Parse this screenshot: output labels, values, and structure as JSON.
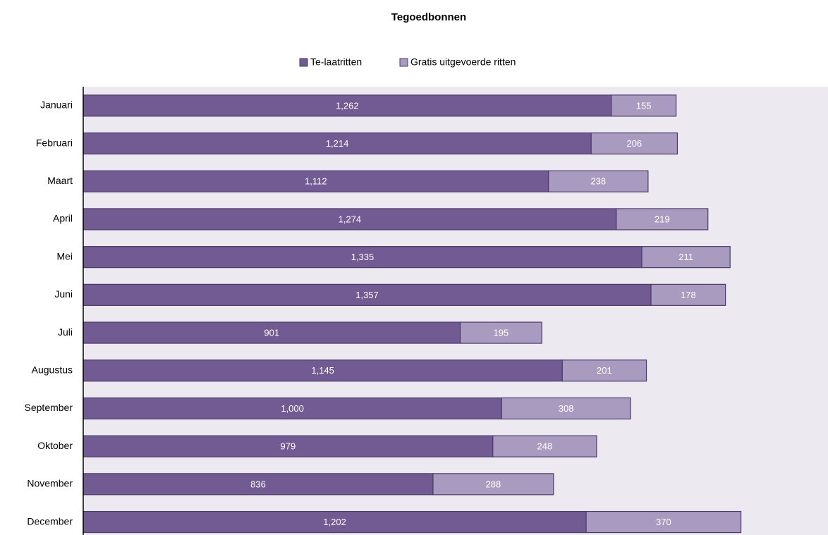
{
  "chart_data": {
    "type": "stacked_barh",
    "title": "Tegoedbonnen",
    "categories": [
      "Januari",
      "Februari",
      "Maart",
      "April",
      "Mei",
      "Juni",
      "Juli",
      "Augustus",
      "September",
      "Oktober",
      "November",
      "December"
    ],
    "series": [
      {
        "name": "Te-laatritten",
        "color": "#725a93",
        "values": [
          1262,
          1214,
          1112,
          1274,
          1335,
          1357,
          901,
          1145,
          1000,
          979,
          836,
          1202
        ],
        "value_labels": [
          "1,262",
          "1,214",
          "1,112",
          "1,274",
          "1,335",
          "1,357",
          "901",
          "1,145",
          "1,000",
          "979",
          "836",
          "1,202"
        ]
      },
      {
        "name": "Gratis uitgevoerde ritten",
        "color": "#a99bbf",
        "values": [
          155,
          206,
          238,
          219,
          211,
          178,
          195,
          201,
          308,
          248,
          288,
          370
        ]
      }
    ],
    "xlim": [
      0,
      1780
    ],
    "legend": "top"
  }
}
